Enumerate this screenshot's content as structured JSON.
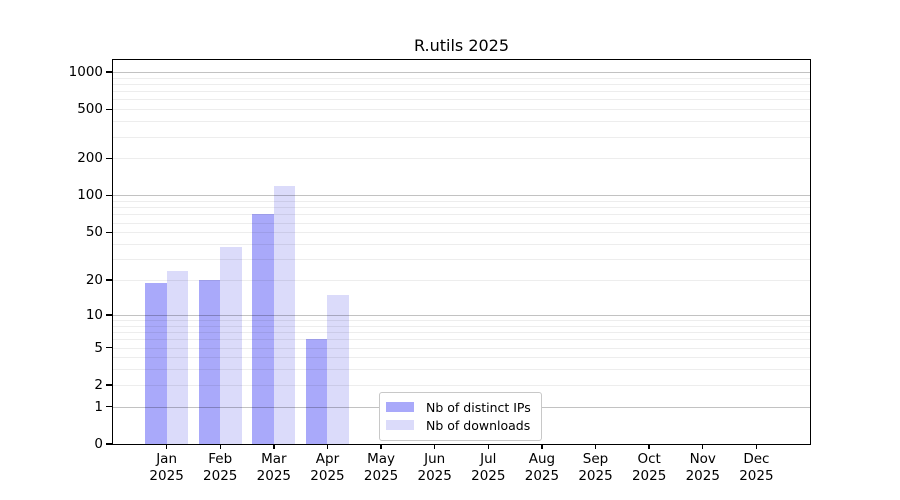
{
  "chart_data": {
    "type": "bar",
    "title": "R.utils 2025",
    "categories": [
      "Jan",
      "Feb",
      "Mar",
      "Apr",
      "May",
      "Jun",
      "Jul",
      "Aug",
      "Sep",
      "Oct",
      "Nov",
      "Dec"
    ],
    "year_label": "2025",
    "series": [
      {
        "name": "Nb of distinct IPs",
        "color": "#a9a9fa",
        "values": [
          19,
          20,
          70,
          6,
          0,
          0,
          0,
          0,
          0,
          0,
          0,
          0
        ]
      },
      {
        "name": "Nb of downloads",
        "color": "#dbdbfa",
        "values": [
          24,
          38,
          120,
          15,
          0,
          0,
          0,
          0,
          0,
          0,
          0,
          0
        ]
      }
    ],
    "yaxis": {
      "scale": "log10(value+1)",
      "ylim": [
        0,
        1270
      ],
      "ticks": [
        {
          "label": "1000",
          "value": 1000
        },
        {
          "label": "500",
          "value": 500
        },
        {
          "label": "200",
          "value": 200
        },
        {
          "label": "100",
          "value": 100
        },
        {
          "label": "50",
          "value": 50
        },
        {
          "label": "20",
          "value": 20
        },
        {
          "label": "10",
          "value": 10
        },
        {
          "label": "5",
          "value": 5
        },
        {
          "label": "2",
          "value": 2
        },
        {
          "label": "1",
          "value": 1
        },
        {
          "label": "0",
          "value": 0
        }
      ],
      "grid": "both"
    },
    "legend": {
      "position": "lower center"
    }
  }
}
